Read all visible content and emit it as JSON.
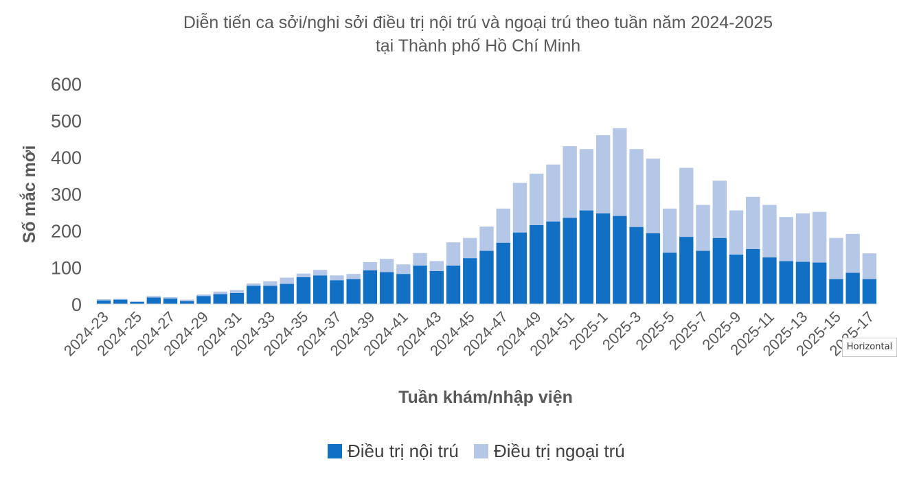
{
  "tooltip": {
    "text": "Horizontal"
  },
  "chart_data": {
    "type": "bar",
    "stacked": true,
    "title_line1": "Diễn tiến ca sởi/nghi sởi điều trị nội trú và ngoại trú theo tuần năm 2024-2025",
    "title_line2": "tại Thành phố Hồ Chí Minh",
    "xlabel": "Tuần khám/nhập viện",
    "ylabel": "Số mắc mới",
    "ylim": [
      0,
      600
    ],
    "yticks": [
      "0",
      "100",
      "200",
      "300",
      "400",
      "500",
      "600"
    ],
    "grid": false,
    "legend_position": "bottom",
    "categories": [
      "2024-23",
      "2024-24",
      "2024-25",
      "2024-26",
      "2024-27",
      "2024-28",
      "2024-29",
      "2024-30",
      "2024-31",
      "2024-32",
      "2024-33",
      "2024-34",
      "2024-35",
      "2024-36",
      "2024-37",
      "2024-38",
      "2024-39",
      "2024-40",
      "2024-41",
      "2024-42",
      "2024-43",
      "2024-44",
      "2024-45",
      "2024-46",
      "2024-47",
      "2024-48",
      "2024-49",
      "2024-50",
      "2024-51",
      "2024-52",
      "2025-1",
      "2025-2",
      "2025-3",
      "2025-4",
      "2025-5",
      "2025-6",
      "2025-7",
      "2025-8",
      "2025-9",
      "2025-10",
      "2025-11",
      "2025-12",
      "2025-13",
      "2025-14",
      "2025-15",
      "2025-16",
      "2025-17"
    ],
    "xtick_labels": [
      "2024-23",
      "2024-25",
      "2024-27",
      "2024-29",
      "2024-31",
      "2024-33",
      "2024-35",
      "2024-37",
      "2024-39",
      "2024-41",
      "2024-43",
      "2024-45",
      "2024-47",
      "2024-49",
      "2024-51",
      "2025-1",
      "2025-3",
      "2025-5",
      "2025-7",
      "2025-9",
      "2025-11",
      "2025-13",
      "2025-15",
      "2025-17"
    ],
    "series": [
      {
        "name": "Điều trị nội trú",
        "color": "#1170c4",
        "values": [
          10,
          12,
          6,
          18,
          15,
          8,
          22,
          27,
          30,
          50,
          50,
          55,
          73,
          78,
          65,
          68,
          92,
          87,
          82,
          105,
          90,
          105,
          125,
          145,
          167,
          195,
          215,
          225,
          235,
          255,
          247,
          240,
          210,
          193,
          140,
          183,
          145,
          180,
          135,
          150,
          127,
          117,
          115,
          113,
          68,
          85,
          68
        ]
      },
      {
        "name": "Điều trị ngoại trú",
        "color": "#b4c7e7",
        "values": [
          3,
          2,
          2,
          4,
          4,
          4,
          4,
          7,
          8,
          6,
          12,
          17,
          10,
          15,
          13,
          14,
          22,
          36,
          26,
          34,
          27,
          63,
          55,
          66,
          93,
          135,
          140,
          155,
          195,
          167,
          213,
          239,
          212,
          203,
          120,
          188,
          125,
          156,
          120,
          142,
          143,
          120,
          132,
          138,
          112,
          106,
          70
        ]
      }
    ]
  }
}
